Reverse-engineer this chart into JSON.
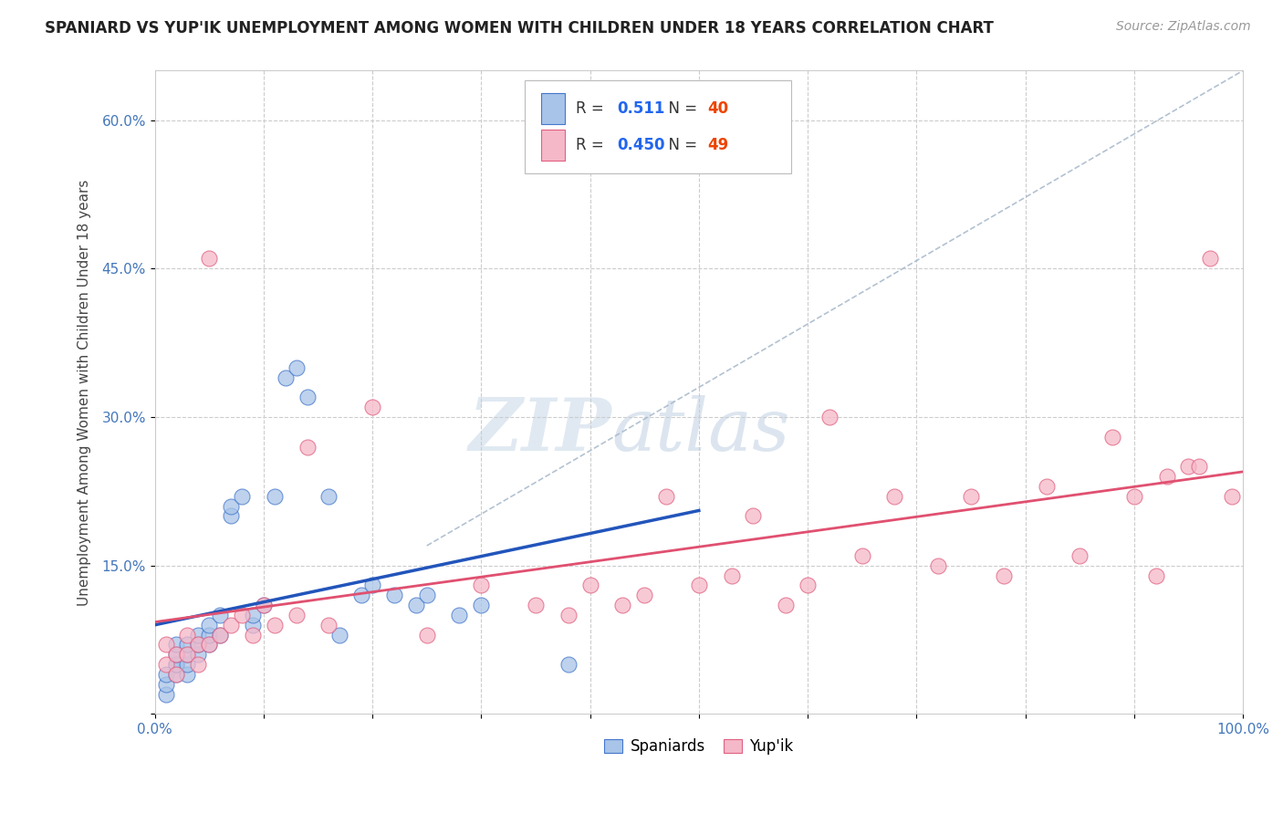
{
  "title": "SPANIARD VS YUP'IK UNEMPLOYMENT AMONG WOMEN WITH CHILDREN UNDER 18 YEARS CORRELATION CHART",
  "source": "Source: ZipAtlas.com",
  "ylabel": "Unemployment Among Women with Children Under 18 years",
  "xlim": [
    0,
    1.0
  ],
  "ylim": [
    0,
    0.65
  ],
  "xticks": [
    0.0,
    0.1,
    0.2,
    0.3,
    0.4,
    0.5,
    0.6,
    0.7,
    0.8,
    0.9,
    1.0
  ],
  "xticklabels": [
    "0.0%",
    "",
    "",
    "",
    "",
    "",
    "",
    "",
    "",
    "",
    "100.0%"
  ],
  "yticks": [
    0.0,
    0.15,
    0.3,
    0.45,
    0.6
  ],
  "yticklabels": [
    "",
    "15.0%",
    "30.0%",
    "45.0%",
    "60.0%"
  ],
  "legend_blue_r": "0.511",
  "legend_blue_n": "40",
  "legend_pink_r": "0.450",
  "legend_pink_n": "49",
  "blue_scatter_color": "#a8c4e8",
  "blue_edge_color": "#4477cc",
  "pink_scatter_color": "#f5b8c8",
  "pink_edge_color": "#e06080",
  "blue_line_color": "#2255bb",
  "pink_line_color": "#e05070",
  "ref_line_color": "#aabbcc",
  "watermark_zip": "ZIP",
  "watermark_atlas": "atlas",
  "spaniards_x": [
    0.01,
    0.01,
    0.01,
    0.02,
    0.02,
    0.02,
    0.02,
    0.02,
    0.03,
    0.03,
    0.03,
    0.03,
    0.04,
    0.04,
    0.04,
    0.05,
    0.05,
    0.05,
    0.06,
    0.06,
    0.07,
    0.07,
    0.08,
    0.09,
    0.09,
    0.1,
    0.11,
    0.12,
    0.13,
    0.14,
    0.16,
    0.17,
    0.19,
    0.2,
    0.22,
    0.24,
    0.25,
    0.28,
    0.3,
    0.38
  ],
  "spaniards_y": [
    0.02,
    0.03,
    0.04,
    0.04,
    0.05,
    0.05,
    0.06,
    0.07,
    0.04,
    0.05,
    0.06,
    0.07,
    0.06,
    0.07,
    0.08,
    0.07,
    0.08,
    0.09,
    0.08,
    0.1,
    0.2,
    0.21,
    0.22,
    0.09,
    0.1,
    0.11,
    0.22,
    0.34,
    0.35,
    0.32,
    0.22,
    0.08,
    0.12,
    0.13,
    0.12,
    0.11,
    0.12,
    0.1,
    0.11,
    0.05
  ],
  "yupik_x": [
    0.01,
    0.01,
    0.02,
    0.02,
    0.03,
    0.03,
    0.04,
    0.04,
    0.05,
    0.05,
    0.06,
    0.07,
    0.08,
    0.09,
    0.1,
    0.11,
    0.13,
    0.14,
    0.16,
    0.2,
    0.25,
    0.3,
    0.35,
    0.38,
    0.4,
    0.43,
    0.45,
    0.47,
    0.5,
    0.53,
    0.55,
    0.58,
    0.6,
    0.62,
    0.65,
    0.68,
    0.72,
    0.75,
    0.78,
    0.82,
    0.85,
    0.88,
    0.9,
    0.92,
    0.93,
    0.95,
    0.96,
    0.97,
    0.99
  ],
  "yupik_y": [
    0.05,
    0.07,
    0.04,
    0.06,
    0.06,
    0.08,
    0.05,
    0.07,
    0.07,
    0.46,
    0.08,
    0.09,
    0.1,
    0.08,
    0.11,
    0.09,
    0.1,
    0.27,
    0.09,
    0.31,
    0.08,
    0.13,
    0.11,
    0.1,
    0.13,
    0.11,
    0.12,
    0.22,
    0.13,
    0.14,
    0.2,
    0.11,
    0.13,
    0.3,
    0.16,
    0.22,
    0.15,
    0.22,
    0.14,
    0.23,
    0.16,
    0.28,
    0.22,
    0.14,
    0.24,
    0.25,
    0.25,
    0.46,
    0.22
  ]
}
